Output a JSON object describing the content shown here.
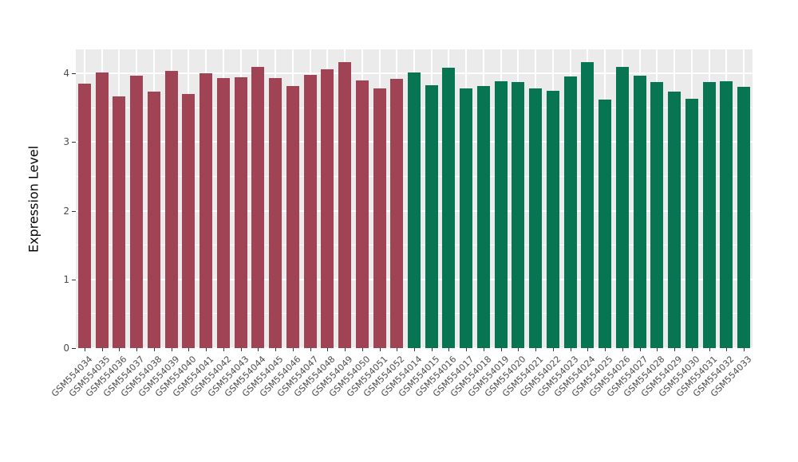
{
  "chart_data": {
    "type": "bar",
    "title": "",
    "xlabel": "",
    "ylabel": "Expression Level",
    "ylim": [
      0,
      4.35
    ],
    "yticks": [
      0,
      1,
      2,
      3,
      4
    ],
    "yticks_minor": [
      0.5,
      1.5,
      2.5,
      3.5
    ],
    "grid": "on",
    "legend": "none",
    "panel_background": "#EBEBEB",
    "gridline_color": "#FFFFFF",
    "group_split_index": 19,
    "group_colors": {
      "left": "#A04455",
      "right": "#077552"
    },
    "categories": [
      "GSM554034",
      "GSM554035",
      "GSM554036",
      "GSM554037",
      "GSM554038",
      "GSM554039",
      "GSM554040",
      "GSM554041",
      "GSM554042",
      "GSM554043",
      "GSM554044",
      "GSM554045",
      "GSM554046",
      "GSM554047",
      "GSM554048",
      "GSM554049",
      "GSM554050",
      "GSM554051",
      "GSM554052",
      "GSM554014",
      "GSM554015",
      "GSM554016",
      "GSM554017",
      "GSM554018",
      "GSM554019",
      "GSM554020",
      "GSM554021",
      "GSM554022",
      "GSM554023",
      "GSM554024",
      "GSM554025",
      "GSM554026",
      "GSM554027",
      "GSM554028",
      "GSM554029",
      "GSM554030",
      "GSM554031",
      "GSM554032",
      "GSM554033"
    ],
    "values": [
      3.85,
      4.01,
      3.67,
      3.97,
      3.74,
      4.04,
      3.7,
      4.0,
      3.93,
      3.94,
      4.1,
      3.93,
      3.82,
      3.98,
      4.06,
      4.17,
      3.9,
      3.78,
      3.92,
      4.01,
      3.83,
      4.08,
      3.78,
      3.82,
      3.89,
      3.87,
      3.78,
      3.75,
      3.96,
      4.16,
      3.62,
      4.09,
      3.97,
      3.88,
      3.74,
      3.63,
      3.87,
      3.89,
      3.8
    ]
  }
}
